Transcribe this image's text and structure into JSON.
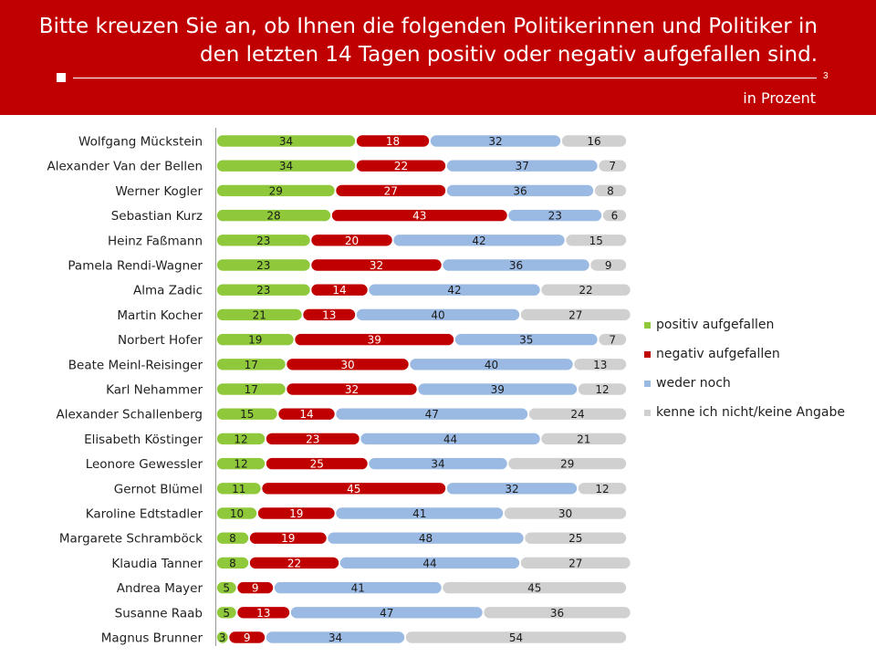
{
  "header": {
    "title_line1": "Bitte kreuzen Sie an, ob Ihnen die folgenden Politikerinnen und Politiker in",
    "title_line2": "den letzten 14 Tagen positiv oder negativ aufgefallen sind.",
    "unit": "in Prozent",
    "page_number": "3"
  },
  "chart_data": {
    "type": "bar",
    "orientation": "horizontal",
    "stacked": true,
    "categories": [
      "Wolfgang Mückstein",
      "Alexander Van der Bellen",
      "Werner Kogler",
      "Sebastian Kurz",
      "Heinz Faßmann",
      "Pamela Rendi-Wagner",
      "Alma Zadic",
      "Martin Kocher",
      "Norbert Hofer",
      "Beate Meinl-Reisinger",
      "Karl Nehammer",
      "Alexander Schallenberg",
      "Elisabeth Köstinger",
      "Leonore Gewessler",
      "Gernot Blümel",
      "Karoline Edtstadler",
      "Margarete Schramböck",
      "Klaudia Tanner",
      "Andrea Mayer",
      "Susanne Raab",
      "Magnus Brunner"
    ],
    "series": [
      {
        "name": "positiv aufgefallen",
        "color": "#8fc83a",
        "values": [
          34,
          34,
          29,
          28,
          23,
          23,
          23,
          21,
          19,
          17,
          17,
          15,
          12,
          12,
          11,
          10,
          8,
          8,
          5,
          5,
          3
        ]
      },
      {
        "name": "negativ aufgefallen",
        "color": "#c00000",
        "values": [
          18,
          22,
          27,
          43,
          20,
          32,
          14,
          13,
          39,
          30,
          32,
          14,
          23,
          25,
          45,
          19,
          19,
          22,
          9,
          13,
          9
        ]
      },
      {
        "name": "weder noch",
        "color": "#9bbae3",
        "values": [
          32,
          37,
          36,
          23,
          42,
          36,
          42,
          40,
          35,
          40,
          39,
          47,
          44,
          34,
          32,
          41,
          48,
          44,
          41,
          47,
          34
        ]
      },
      {
        "name": "kenne ich nicht/keine Angabe",
        "color": "#d0d0d0",
        "values": [
          16,
          7,
          8,
          6,
          15,
          9,
          22,
          27,
          7,
          13,
          12,
          24,
          21,
          29,
          12,
          30,
          25,
          27,
          45,
          36,
          54
        ]
      }
    ],
    "xlim": [
      0,
      100
    ],
    "legend_position": "right",
    "grid": false
  }
}
